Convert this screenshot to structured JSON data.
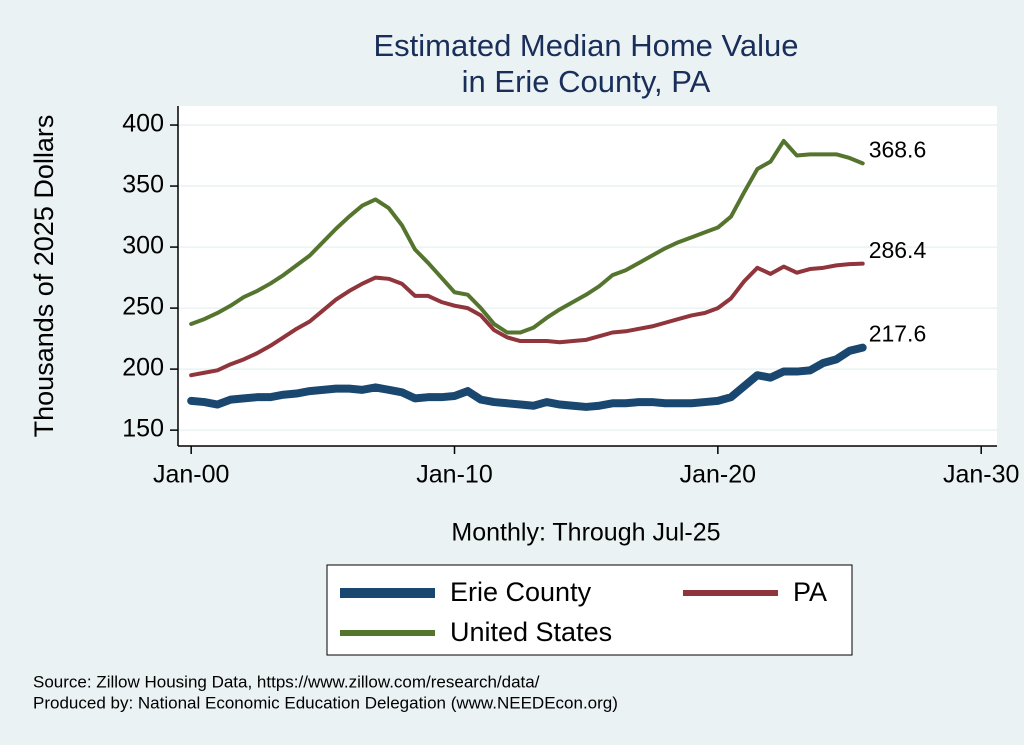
{
  "chart_data": {
    "type": "line",
    "title": [
      "Estimated Median Home Value",
      "in Erie County, PA"
    ],
    "y_label": "Thousands of 2025 Dollars",
    "x_label": "Monthly: Through Jul-25",
    "notes": [
      "Source: Zillow Housing Data, https://www.zillow.com/research/data/",
      "Produced by: National Economic Education Delegation (www.NEEDEcon.org)"
    ],
    "x": [
      2000,
      2000.5,
      2001,
      2001.5,
      2002,
      2002.5,
      2003,
      2003.5,
      2004,
      2004.5,
      2005,
      2005.5,
      2006,
      2006.5,
      2007,
      2007.5,
      2008,
      2008.5,
      2009,
      2009.5,
      2010,
      2010.5,
      2011,
      2011.5,
      2012,
      2012.5,
      2013,
      2013.5,
      2014,
      2014.5,
      2015,
      2015.5,
      2016,
      2016.5,
      2017,
      2017.5,
      2018,
      2018.5,
      2019,
      2019.5,
      2020,
      2020.5,
      2021,
      2021.5,
      2022,
      2022.5,
      2023,
      2023.5,
      2024,
      2024.5,
      2025,
      2025.5
    ],
    "series": [
      {
        "name": "Erie County",
        "color": "#1a476f",
        "width": 8,
        "values": [
          174,
          173,
          171,
          175,
          176,
          177,
          177,
          179,
          180,
          182,
          183,
          184,
          184,
          183,
          185,
          183,
          181,
          176,
          177,
          177,
          178,
          182,
          175,
          173,
          172,
          171,
          170,
          173,
          171,
          170,
          169,
          170,
          172,
          172,
          173,
          173,
          172,
          172,
          172,
          173,
          174,
          177,
          186,
          195,
          193,
          198,
          198,
          199,
          205,
          208,
          215,
          217.6
        ]
      },
      {
        "name": "PA",
        "color": "#90353b",
        "width": 4,
        "values": [
          195,
          197,
          199,
          204,
          208,
          213,
          219,
          226,
          233,
          239,
          248,
          257,
          264,
          270,
          275,
          274,
          270,
          260,
          260,
          255,
          252,
          250,
          244,
          232,
          226,
          223,
          223,
          223,
          222,
          223,
          224,
          227,
          230,
          231,
          233,
          235,
          238,
          241,
          244,
          246,
          250,
          258,
          272,
          283,
          278,
          284,
          279,
          282,
          283,
          285,
          286,
          286.4
        ]
      },
      {
        "name": "United States",
        "color": "#55752f",
        "width": 4,
        "values": [
          237,
          241,
          246,
          252,
          259,
          264,
          270,
          277,
          285,
          293,
          304,
          315,
          325,
          334,
          339,
          332,
          318,
          298,
          287,
          275,
          263,
          261,
          250,
          237,
          230,
          230,
          234,
          242,
          249,
          255,
          261,
          268,
          277,
          281,
          287,
          293,
          299,
          304,
          308,
          312,
          316,
          325,
          345,
          364,
          370,
          387,
          375,
          376,
          376,
          376,
          373,
          368.6
        ]
      }
    ],
    "xlim": [
      1999.5,
      2030.6
    ],
    "xticks": [
      {
        "value": 2000,
        "label": "Jan-00"
      },
      {
        "value": 2010,
        "label": "Jan-10"
      },
      {
        "value": 2020,
        "label": "Jan-20"
      },
      {
        "value": 2030,
        "label": "Jan-30"
      }
    ],
    "ylim": [
      137,
      415.6
    ],
    "yticks": [
      150,
      200,
      250,
      300,
      350,
      400
    ],
    "grid": true,
    "legend": "bottom"
  }
}
